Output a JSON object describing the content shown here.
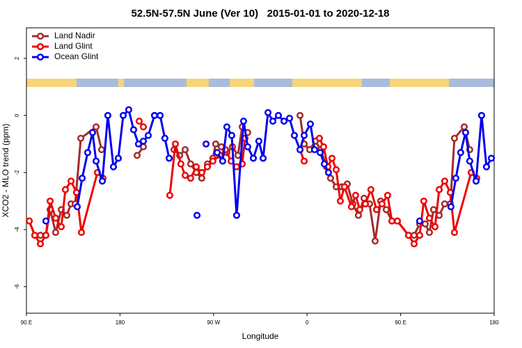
{
  "chart_data": {
    "type": "line",
    "title": "52.5N-57.5N June (Ver 10)   2015-01-01 to 2020-12-18",
    "x_label": "Longitude",
    "y_label": "XCO2 - MLO trend (ppm)",
    "xlim": [
      90,
      540
    ],
    "ylim": [
      -6.93,
      3.07
    ],
    "xticks": [
      {
        "value": 90,
        "label": "90 E"
      },
      {
        "value": 180,
        "label": "180"
      },
      {
        "value": 270,
        "label": "90 W"
      },
      {
        "value": 360,
        "label": "0"
      },
      {
        "value": 450,
        "label": "90 E"
      },
      {
        "value": 540,
        "label": "180"
      }
    ],
    "yticks": [
      -6,
      -4,
      -2,
      0,
      2
    ],
    "legend": "top-left",
    "series": [
      {
        "name": "Land Nadir",
        "color": "#a52a2a",
        "x": [
          92.7,
          98.0,
          103.4,
          108.7,
          112.8,
          118.1,
          123.5,
          128.8,
          132.9,
          136.9,
          142.3,
          157.0,
          162.3,
          null,
          196.5,
          202.5,
          null,
          232.0,
          237.4,
          242.7,
          248.0,
          253.4,
          258.7,
          264.1,
          269.4,
          272.1,
          277.5,
          282.8,
          288.2,
          293.5,
          297.6,
          302.9,
          null,
          353.2,
          357.2,
          362.5,
          367.9,
          373.2,
          378.6,
          382.6,
          388.0,
          393.3,
          398.7,
          404.0,
          409.4,
          414.8,
          420.1,
          425.5,
          430.8,
          436.2,
          441.6,
          446.9,
          457.6,
          463.0,
          468.3,
          473.7,
          477.7,
          481.7,
          487.1,
          492.4,
          497.8,
          501.8,
          511.2,
          516.5
        ],
        "values": [
          -3.7,
          -4.2,
          -4.2,
          -4.2,
          -3.3,
          -4.1,
          -3.3,
          -3.5,
          -3.1,
          -3.1,
          -0.8,
          -0.4,
          -1.2,
          null,
          -1.4,
          -1.1,
          null,
          -1.2,
          -1.4,
          -1.2,
          -1.7,
          -2.0,
          -2.2,
          -1.7,
          -1.5,
          -1.0,
          -1.1,
          -1.3,
          -1.1,
          -1.4,
          -0.4,
          -0.6,
          null,
          0.0,
          -1.0,
          -1.2,
          -0.9,
          -1.2,
          -1.8,
          -2.2,
          -2.5,
          -2.5,
          -2.4,
          -3.1,
          -3.5,
          -2.9,
          -3.1,
          -4.4,
          -3.0,
          -3.3,
          -3.7,
          -3.7,
          -4.2,
          -4.2,
          -3.8,
          -3.8,
          -4.1,
          -3.3,
          -3.5,
          -3.1,
          -3.1,
          -0.8,
          -0.4,
          -1.2
        ]
      },
      {
        "name": "Land Glint",
        "color": "#ee0000",
        "x": [
          92.7,
          98.0,
          103.4,
          108.7,
          112.8,
          118.1,
          123.5,
          127.5,
          132.9,
          138.2,
          142.9,
          158.3,
          163.6,
          null,
          198.5,
          202.5,
          null,
          227.9,
          233.3,
          238.6,
          242.7,
          248.0,
          253.4,
          258.7,
          264.1,
          269.4,
          276.1,
          281.5,
          286.9,
          292.2,
          297.6,
          300.3,
          null,
          353.2,
          357.2,
          null,
          371.9,
          375.9,
          380.0,
          384.0,
          388.0,
          392.0,
          396.0,
          402.7,
          406.7,
          410.7,
          416.1,
          421.4,
          426.8,
          432.1,
          437.5,
          441.6,
          446.9,
          457.6,
          463.0,
          468.3,
          472.3,
          477.7,
          483.1,
          487.1,
          492.4,
          497.8,
          501.8,
          517.9,
          523.2
        ],
        "values": [
          -3.7,
          -4.2,
          -4.5,
          -4.2,
          -3.0,
          -3.6,
          -3.9,
          -2.6,
          -2.3,
          -2.7,
          -4.1,
          -2.0,
          -2.2,
          null,
          -0.2,
          -0.4,
          null,
          -2.8,
          -1.0,
          -1.7,
          -2.1,
          -2.2,
          -1.8,
          -2.0,
          -1.8,
          -1.6,
          -1.4,
          -1.2,
          -1.6,
          -1.8,
          -1.7,
          -0.8,
          null,
          -1.2,
          -1.6,
          null,
          -0.8,
          -1.1,
          -1.8,
          -1.5,
          -1.9,
          -3.0,
          -2.5,
          -3.2,
          -2.8,
          -3.3,
          -3.1,
          -2.6,
          -3.3,
          -3.1,
          -2.8,
          -3.7,
          -3.7,
          -4.2,
          -4.5,
          -4.2,
          -3.0,
          -3.6,
          -3.9,
          -2.6,
          -2.3,
          -2.7,
          -4.1,
          -2.0,
          -2.2
        ]
      },
      {
        "name": "Ocean Glint",
        "color": "#0000ee",
        "x": [
          108.7,
          null,
          138.9,
          143.6,
          148.9,
          153.6,
          157.0,
          163.0,
          168.3,
          173.7,
          178.4,
          183.1,
          188.4,
          193.1,
          197.8,
          202.5,
          207.2,
          213.2,
          218.6,
          223.2,
          227.3,
          null,
          254.1,
          null,
          262.8,
          null,
          273.5,
          278.8,
          282.8,
          287.5,
          292.2,
          298.9,
          302.9,
          308.3,
          313.6,
          317.7,
          322.4,
          327.1,
          332.4,
          337.8,
          343.1,
          347.8,
          353.2,
          357.2,
          363.2,
          367.2,
          372.6,
          376.6,
          380.6,
          null,
          468.3,
          null,
          498.4,
          503.1,
          507.8,
          512.5,
          516.5,
          522.6,
          527.9,
          532.6,
          537.3
        ],
        "values": [
          -3.7,
          null,
          -3.2,
          -2.2,
          -1.3,
          -0.6,
          -1.6,
          -2.3,
          0.0,
          -1.8,
          -1.5,
          0.0,
          0.2,
          -0.5,
          -1.0,
          -0.9,
          -0.7,
          0.0,
          0.0,
          -0.8,
          -1.5,
          null,
          -3.5,
          null,
          -1.0,
          null,
          -1.3,
          -1.6,
          -0.4,
          -0.7,
          -3.5,
          -0.2,
          -1.1,
          -1.5,
          -0.9,
          -1.5,
          0.1,
          -0.2,
          0.0,
          -0.2,
          -0.1,
          -0.7,
          -1.2,
          -0.7,
          -0.3,
          -1.2,
          -1.3,
          -1.7,
          -2.0,
          null,
          -3.7,
          null,
          -3.2,
          -2.2,
          -1.3,
          -0.6,
          -1.6,
          -2.3,
          0.0,
          -1.8,
          -1.5
        ]
      }
    ]
  }
}
